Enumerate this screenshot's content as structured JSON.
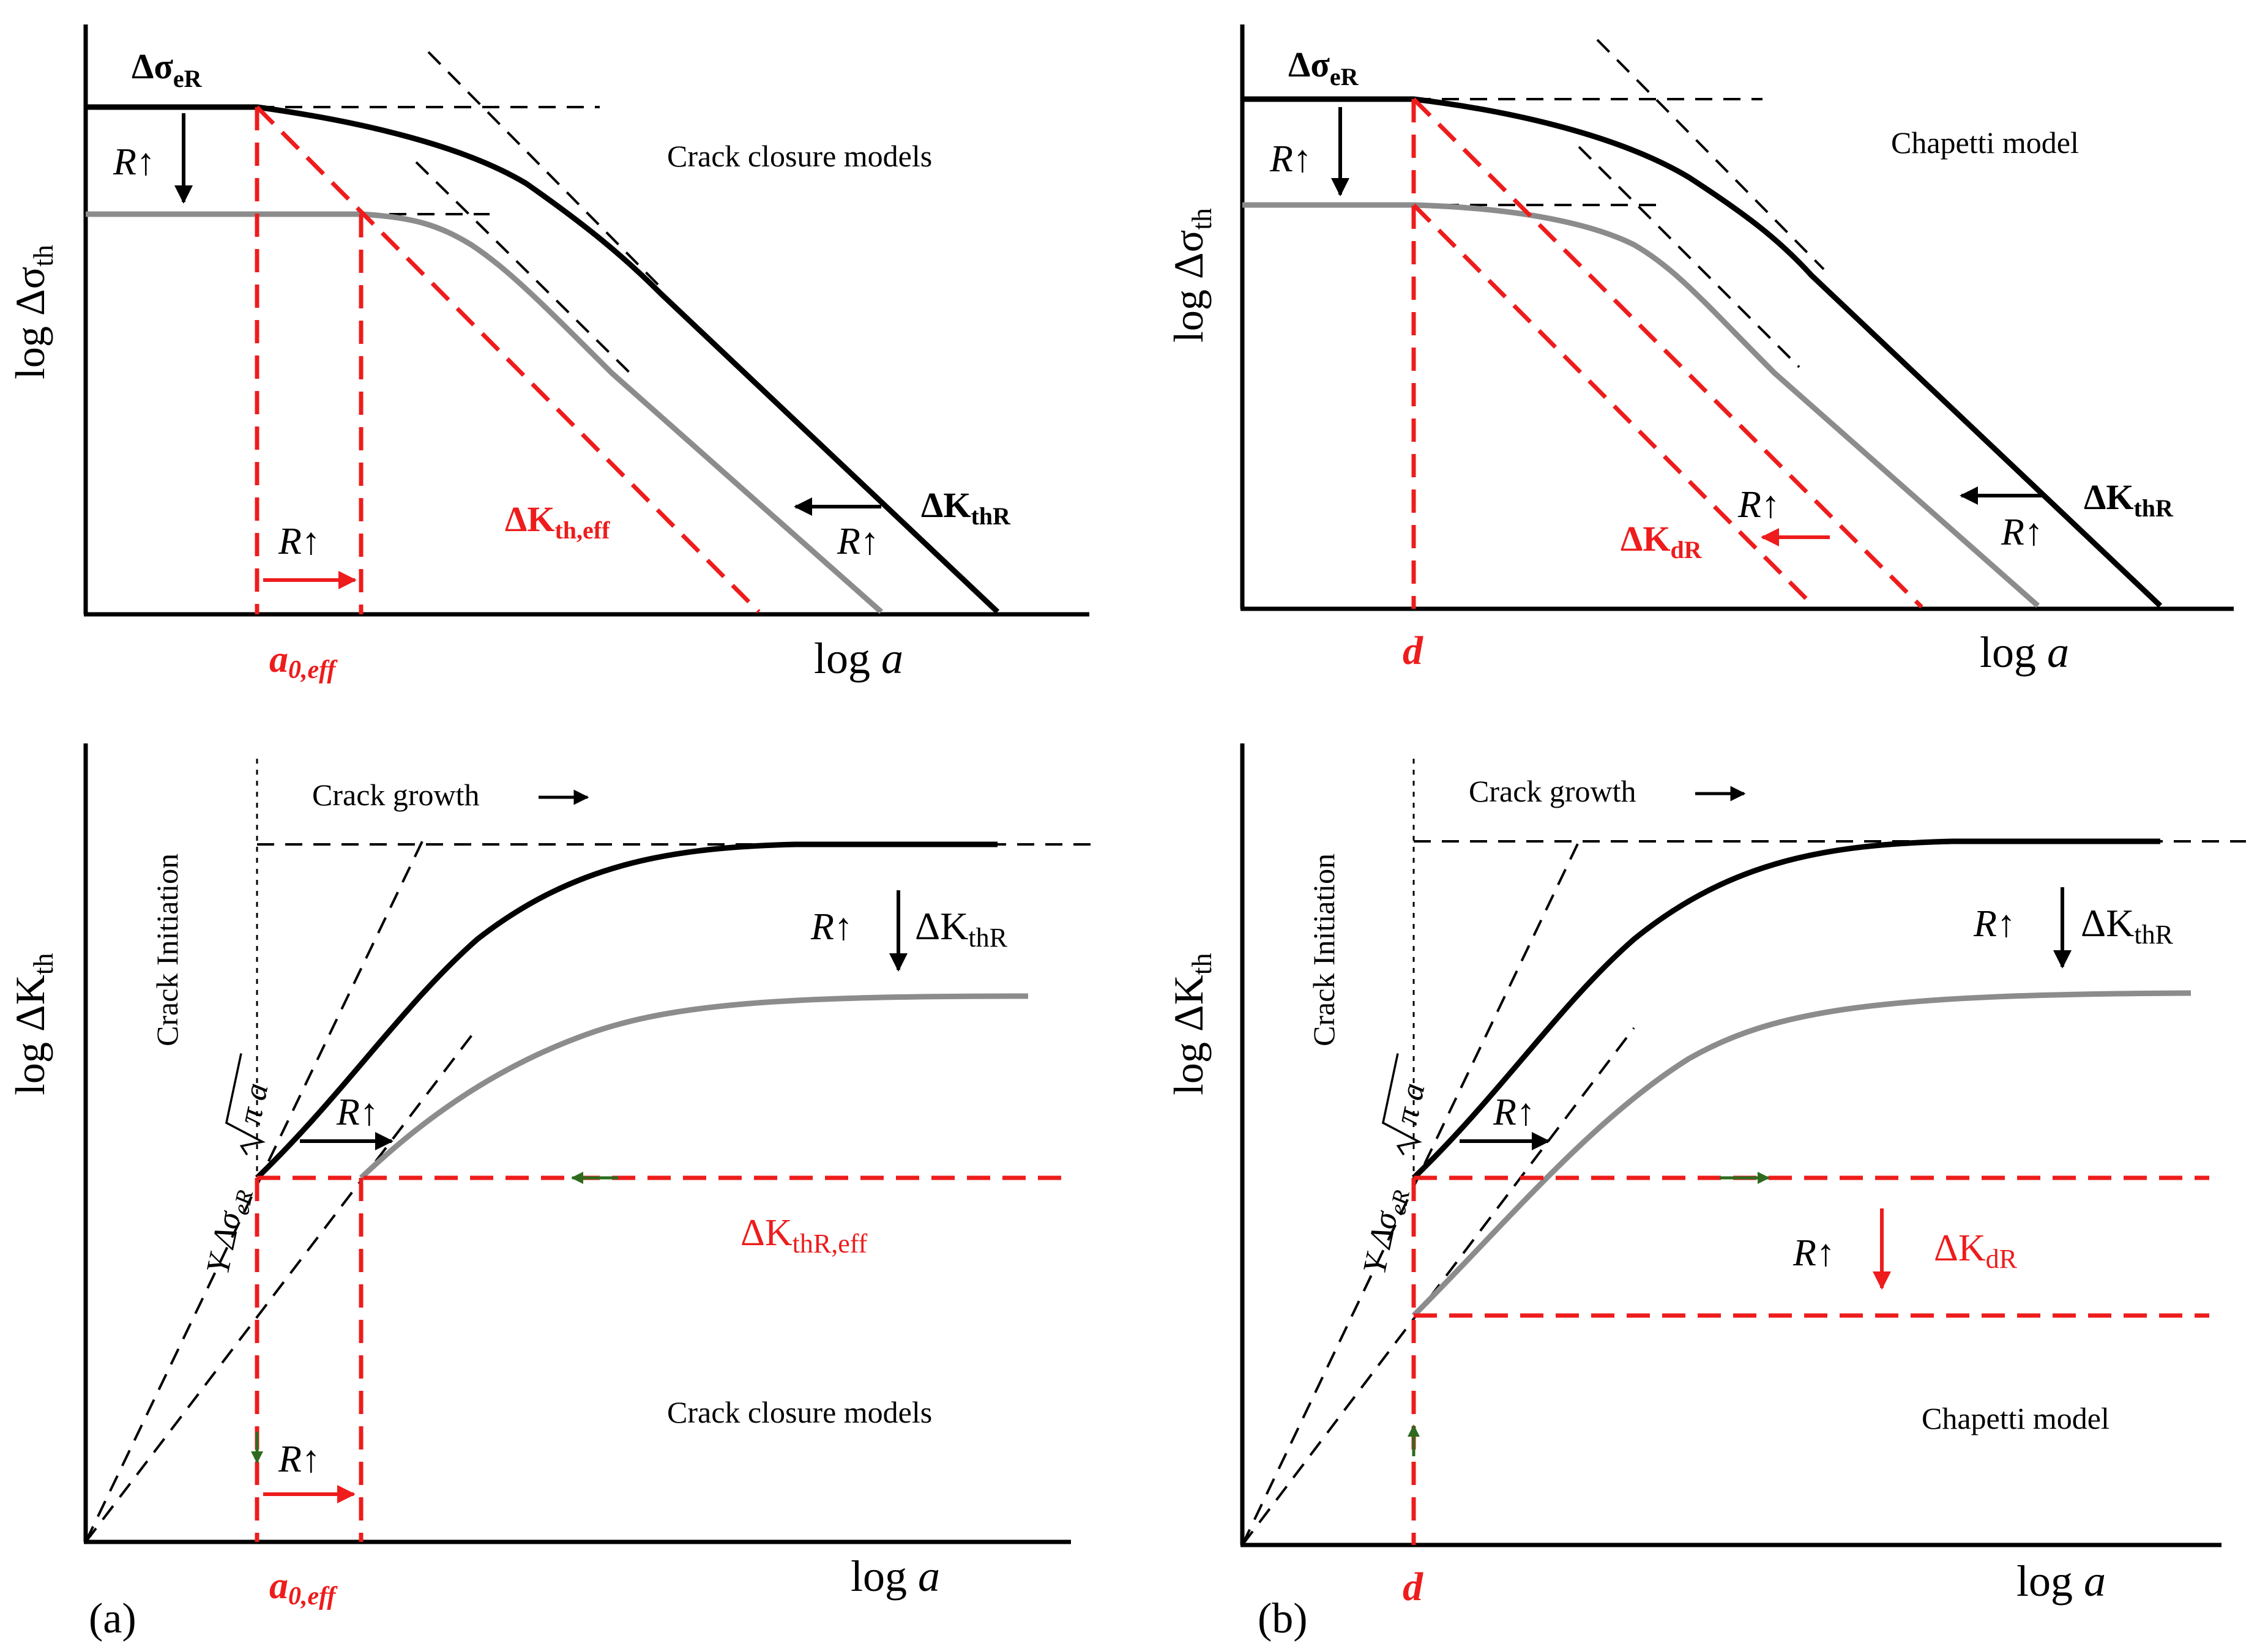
{
  "labels": {
    "delta_sigma_eR": "Δσ",
    "delta_sigma_eR_sub": "eR",
    "log_delta_sigma_th": "log Δσ",
    "log_delta_sigma_th_sub": "th",
    "log_delta_K_th": "log ΔK",
    "log_delta_K_th_sub": "th",
    "log_a_prefix": "log ",
    "log_a_var": "a",
    "R_up": "R↑",
    "delta_K_thR": "ΔK",
    "delta_K_thR_sub": "thR",
    "crack_closure_models": "Crack closure models",
    "chapetti_model": "Chapetti model",
    "delta_K_th_eff": "ΔK",
    "delta_K_th_eff_sub": "th,eff",
    "delta_K_dR": "ΔK",
    "delta_K_dR_sub": "dR",
    "delta_K_thR_eff": "ΔK",
    "delta_K_thR_eff_sub": "thR,eff",
    "a0_eff": "a",
    "a0_eff_sub": "0,eff",
    "d": "d",
    "crack_growth": "Crack growth",
    "crack_initiation": "Crack Initiation",
    "Y": "Y",
    "delta_sigma_italic": "Δσ",
    "eR_italic": "eR",
    "pi_a": "π a",
    "panel_a": "(a)",
    "panel_b": "(b)"
  },
  "colors": {
    "black": "#000000",
    "red": "#ee1c1c",
    "gray": "#8c8c8c",
    "green_arrow": "#2e6b1e"
  }
}
